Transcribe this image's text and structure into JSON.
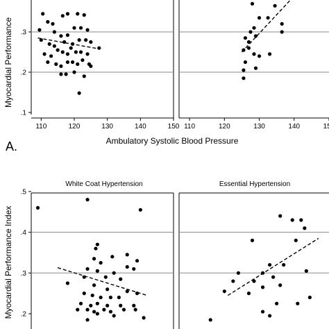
{
  "chart_data": [
    {
      "type": "scatter",
      "figure_label": "A.",
      "xlabel": "Ambulatory Systolic Blood Pressure",
      "ylabel": "Myocardial Performance",
      "x_ticks": [
        "110",
        "120",
        "130",
        "140",
        "150"
      ],
      "y_ticks": [
        ".1",
        ".2",
        ".3"
      ],
      "ylim": [
        0.09,
        0.37
      ],
      "grid": "horizontal",
      "panels": [
        {
          "title": "",
          "xlim": [
            107,
            150
          ],
          "points": [
            [
              110.5,
              0.345
            ],
            [
              112,
              0.325
            ],
            [
              113.5,
              0.32
            ],
            [
              116.5,
              0.34
            ],
            [
              118,
              0.345
            ],
            [
              121,
              0.345
            ],
            [
              123,
              0.342
            ],
            [
              109.5,
              0.305
            ],
            [
              114,
              0.3
            ],
            [
              116,
              0.29
            ],
            [
              118,
              0.292
            ],
            [
              120,
              0.31
            ],
            [
              122,
              0.31
            ],
            [
              124,
              0.305
            ],
            [
              110,
              0.28
            ],
            [
              112.5,
              0.27
            ],
            [
              114,
              0.265
            ],
            [
              117,
              0.275
            ],
            [
              119.5,
              0.27
            ],
            [
              121.5,
              0.28
            ],
            [
              123.5,
              0.28
            ],
            [
              125,
              0.275
            ],
            [
              111,
              0.245
            ],
            [
              113,
              0.24
            ],
            [
              115,
              0.255
            ],
            [
              116.5,
              0.25
            ],
            [
              118,
              0.245
            ],
            [
              119,
              0.26
            ],
            [
              120.5,
              0.25
            ],
            [
              122,
              0.25
            ],
            [
              124,
              0.245
            ],
            [
              112,
              0.225
            ],
            [
              114.5,
              0.22
            ],
            [
              116,
              0.215
            ],
            [
              118,
              0.225
            ],
            [
              119.5,
              0.225
            ],
            [
              121,
              0.22
            ],
            [
              122.5,
              0.23
            ],
            [
              124.5,
              0.22
            ],
            [
              116,
              0.195
            ],
            [
              117.5,
              0.195
            ],
            [
              120,
              0.2
            ],
            [
              123,
              0.19
            ],
            [
              121.5,
              0.148
            ],
            [
              125,
              0.215
            ],
            [
              127.5,
              0.26
            ]
          ],
          "trend": [
            [
              109,
              0.285
            ],
            [
              127.5,
              0.258
            ]
          ]
        },
        {
          "title": "",
          "xlim": [
            107,
            150
          ],
          "points": [
            [
              128,
              0.37
            ],
            [
              130,
              0.335
            ],
            [
              132.5,
              0.335
            ],
            [
              134.5,
              0.365
            ],
            [
              136.5,
              0.32
            ],
            [
              136.5,
              0.3
            ],
            [
              126,
              0.285
            ],
            [
              127,
              0.275
            ],
            [
              127.5,
              0.3
            ],
            [
              128.5,
              0.31
            ],
            [
              129,
              0.29
            ],
            [
              127,
              0.26
            ],
            [
              125.5,
              0.255
            ],
            [
              128.5,
              0.245
            ],
            [
              130,
              0.24
            ],
            [
              133,
              0.245
            ],
            [
              126,
              0.225
            ],
            [
              129,
              0.21
            ],
            [
              125.5,
              0.205
            ],
            [
              125.5,
              0.185
            ]
          ],
          "trend": [
            [
              125,
              0.25
            ],
            [
              139,
              0.38
            ]
          ]
        }
      ]
    },
    {
      "type": "scatter",
      "xlabel": "",
      "ylabel": "Myocardial Performance Index",
      "y_ticks": [
        ".2",
        ".3",
        ".4",
        ".5"
      ],
      "ylim": [
        0.175,
        0.51
      ],
      "grid": "horizontal",
      "panels": [
        {
          "title": "White Coat Hypertension",
          "xlim": [
            107,
            150
          ],
          "points": [
            [
              109,
              0.46
            ],
            [
              124,
              0.48
            ],
            [
              140,
              0.455
            ],
            [
              127,
              0.37
            ],
            [
              126.5,
              0.36
            ],
            [
              136,
              0.345
            ],
            [
              131.5,
              0.34
            ],
            [
              126,
              0.335
            ],
            [
              139,
              0.33
            ],
            [
              128,
              0.325
            ],
            [
              124,
              0.31
            ],
            [
              136,
              0.315
            ],
            [
              127,
              0.305
            ],
            [
              132,
              0.3
            ],
            [
              138,
              0.31
            ],
            [
              123,
              0.29
            ],
            [
              129.5,
              0.29
            ],
            [
              134,
              0.285
            ],
            [
              118,
              0.275
            ],
            [
              126,
              0.27
            ],
            [
              130,
              0.26
            ],
            [
              136,
              0.255
            ],
            [
              139,
              0.25
            ],
            [
              123,
              0.25
            ],
            [
              125.5,
              0.245
            ],
            [
              128,
              0.24
            ],
            [
              131,
              0.24
            ],
            [
              133.5,
              0.24
            ],
            [
              122,
              0.225
            ],
            [
              125,
              0.22
            ],
            [
              127,
              0.225
            ],
            [
              130,
              0.22
            ],
            [
              134,
              0.22
            ],
            [
              138,
              0.22
            ],
            [
              121,
              0.21
            ],
            [
              124,
              0.21
            ],
            [
              126,
              0.205
            ],
            [
              129,
              0.21
            ],
            [
              131,
              0.205
            ],
            [
              135,
              0.21
            ],
            [
              138.5,
              0.21
            ],
            [
              127,
              0.2
            ],
            [
              132,
              0.195
            ],
            [
              141,
              0.19
            ],
            [
              124,
              0.185
            ]
          ],
          "trend": [
            [
              115,
              0.313
            ],
            [
              142,
              0.245
            ]
          ]
        },
        {
          "title": "Essential Hypertension",
          "xlim": [
            107,
            150
          ],
          "points": [
            [
              136,
              0.44
            ],
            [
              139.5,
              0.43
            ],
            [
              142,
              0.43
            ],
            [
              143,
              0.41
            ],
            [
              128,
              0.38
            ],
            [
              140.5,
              0.38
            ],
            [
              133,
              0.32
            ],
            [
              137,
              0.32
            ],
            [
              143.5,
              0.305
            ],
            [
              124,
              0.3
            ],
            [
              131,
              0.3
            ],
            [
              134,
              0.29
            ],
            [
              122.5,
              0.28
            ],
            [
              128.5,
              0.28
            ],
            [
              120,
              0.255
            ],
            [
              127,
              0.25
            ],
            [
              131,
              0.265
            ],
            [
              136,
              0.27
            ],
            [
              144.5,
              0.24
            ],
            [
              135,
              0.225
            ],
            [
              141,
              0.225
            ],
            [
              131,
              0.205
            ],
            [
              133,
              0.195
            ],
            [
              116,
              0.185
            ]
          ],
          "trend": [
            [
              121,
              0.245
            ],
            [
              147,
              0.385
            ]
          ]
        }
      ]
    }
  ]
}
